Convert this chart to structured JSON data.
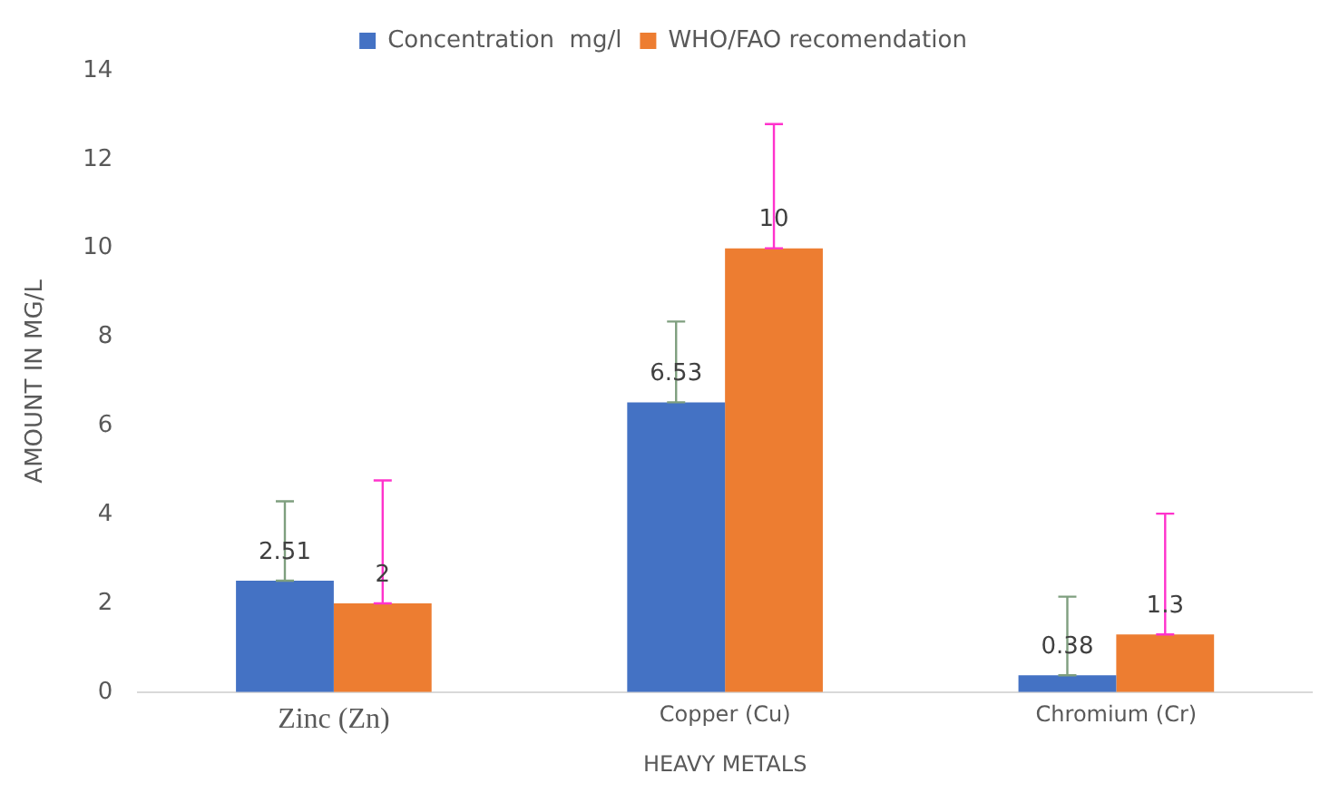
{
  "chart_data": {
    "type": "bar",
    "xlabel": "HEAVY METALS",
    "ylabel": "AMOUNT IN MG/L",
    "categories": [
      "Zinc (Zn)",
      "Copper (Cu)",
      "Chromium (Cr)"
    ],
    "series": [
      {
        "name": "Concentration  mg/l",
        "color": "#4472c4",
        "values": [
          2.51,
          6.53,
          0.38
        ],
        "errors": [
          [
            2.51,
            4.3
          ],
          [
            6.53,
            8.35
          ],
          [
            0.38,
            2.15
          ]
        ]
      },
      {
        "name": "WHO/FAO recomendation",
        "color": "#ed7d31",
        "values": [
          2,
          10,
          1.3
        ],
        "errors": [
          [
            2,
            4.77
          ],
          [
            10,
            12.8
          ],
          [
            1.3,
            4.02
          ]
        ]
      }
    ],
    "ylim": [
      0,
      14
    ],
    "yticks": [
      0,
      2,
      4,
      6,
      8,
      10,
      12,
      14
    ],
    "grid": false,
    "legend": "top",
    "data_labels": true
  }
}
